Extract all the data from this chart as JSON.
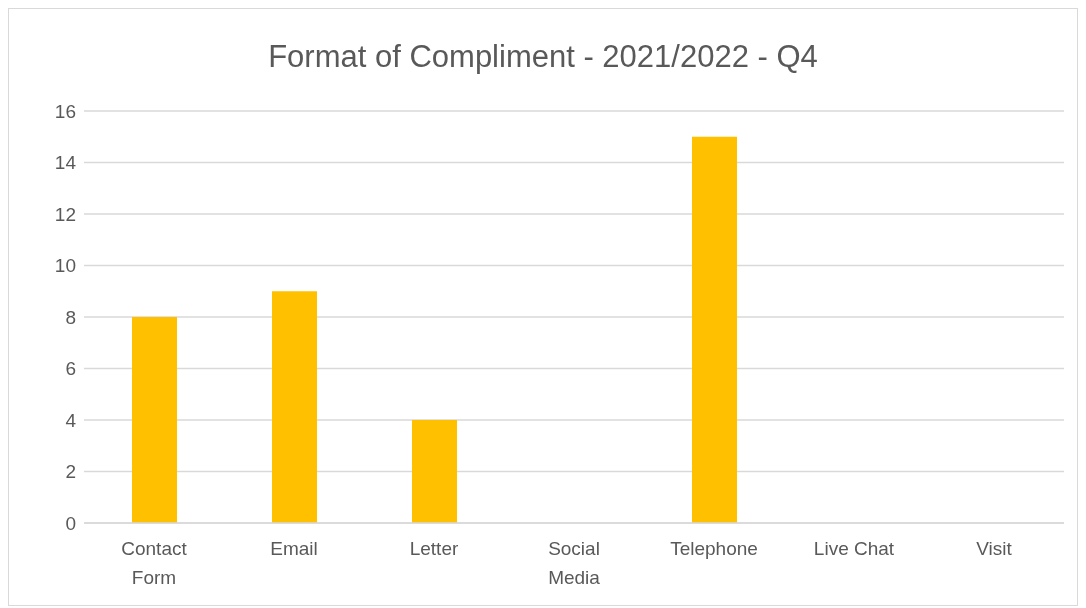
{
  "chart_data": {
    "type": "bar",
    "title": "Format of Compliment - 2021/2022 - Q4",
    "categories": [
      "Contact Form",
      "Email",
      "Letter",
      "Social Media",
      "Telephone",
      "Live Chat",
      "Visit"
    ],
    "values": [
      8,
      9,
      4,
      0,
      15,
      0,
      0
    ],
    "color": "#ffc000",
    "ylim": [
      0,
      16
    ],
    "yticks": [
      0,
      2,
      4,
      6,
      8,
      10,
      12,
      14,
      16
    ],
    "grid": "y",
    "legend": false
  }
}
